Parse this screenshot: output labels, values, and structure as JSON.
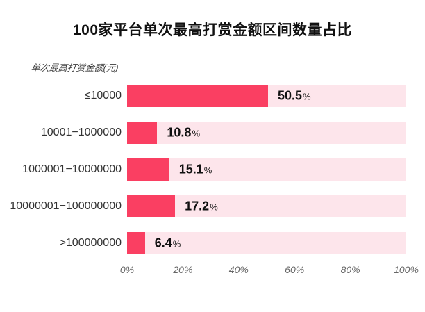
{
  "chart_data": {
    "type": "bar",
    "orientation": "horizontal",
    "title": "100家平台单次最高打赏金额区间数量占比",
    "ylabel": "单次最高打赏金额(元)",
    "xlabel": "",
    "categories": [
      "≤10000",
      "10001−1000000",
      "1000001−10000000",
      "10000001−100000000",
      ">100000000"
    ],
    "values": [
      50.5,
      10.8,
      15.1,
      17.2,
      6.4
    ],
    "value_labels": [
      "50.5",
      "10.8",
      "15.1",
      "17.2",
      "6.4"
    ],
    "percent_sign": "%",
    "x_ticks": [
      "0%",
      "20%",
      "40%",
      "60%",
      "80%",
      "100%"
    ],
    "xlim": [
      0,
      100
    ],
    "grid": false,
    "legend": false,
    "bar_color": "#fa3f62",
    "track_color": "#fde5eb"
  }
}
